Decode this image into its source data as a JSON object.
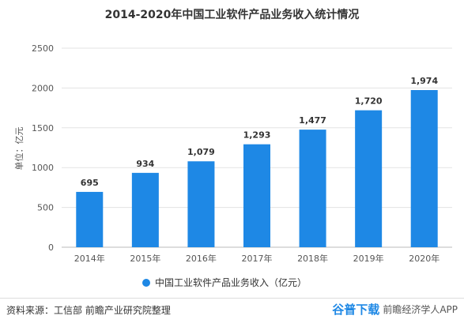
{
  "chart_data": {
    "type": "bar",
    "title": "2014-2020年中国工业软件产品业务收入统计情况",
    "ylabel": "单位：亿元",
    "xlabel": "",
    "categories": [
      "2014年",
      "2015年",
      "2016年",
      "2017年",
      "2018年",
      "2019年",
      "2020年"
    ],
    "values": [
      695,
      934,
      1079,
      1293,
      1477,
      1720,
      1974
    ],
    "value_labels": [
      "695",
      "934",
      "1,079",
      "1,293",
      "1,477",
      "1,720",
      "1,974"
    ],
    "ylim": [
      0,
      2500
    ],
    "yticks": [
      0,
      500,
      1000,
      1500,
      2000,
      2500
    ],
    "grid": true,
    "legend_position": "bottom",
    "series": [
      {
        "name": "中国工业软件产品业务收入（亿元）",
        "values": [
          695,
          934,
          1079,
          1293,
          1477,
          1720,
          1974
        ],
        "color": "#1e88e5"
      }
    ]
  },
  "legend": {
    "label": "中国工业软件产品业务收入（亿元）",
    "color": "#1e88e5"
  },
  "source": "资料来源：工信部 前瞻产业研究院整理",
  "watermark": {
    "mark": "谷普下载",
    "site": "前瞻经济学人APP"
  }
}
